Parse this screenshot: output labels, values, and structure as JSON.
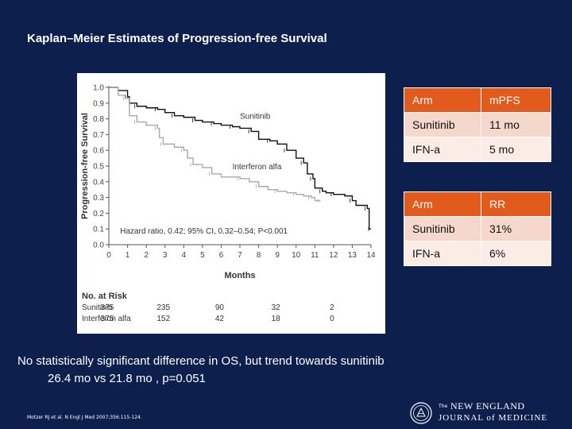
{
  "slide": {
    "title": "Kaplan–Meier Estimates of Progression-free Survival",
    "note_line1": "No statistically significant difference in OS, but trend towards sunitinib",
    "note_line2": "26.4 mo vs 21.8 mo , p=0.051",
    "citation": "Motzer RJ et al. N Engl J Med 2007;356:115-124.",
    "journal_the": "The",
    "journal_line1": "NEW ENGLAND",
    "journal_line2": "JOURNAL of MEDICINE"
  },
  "table_pfs": {
    "header": [
      "Arm",
      "mPFS"
    ],
    "rows": [
      [
        "Sunitinib",
        "11 mo"
      ],
      [
        "IFN-a",
        "5 mo"
      ]
    ]
  },
  "table_rr": {
    "header": [
      "Arm",
      "RR"
    ],
    "rows": [
      [
        "Sunitinib",
        "31%"
      ],
      [
        "IFN-a",
        "6%"
      ]
    ]
  },
  "colors": {
    "background": "#0c1f4d",
    "table_header": "#e35a1d",
    "sunitinib": "#111111",
    "interferon": "#a8a8a8"
  },
  "chart_data": {
    "type": "line",
    "title": "Kaplan–Meier Estimates of Progression-free Survival",
    "xlabel": "Months",
    "ylabel": "Progression-free Survival",
    "xlim": [
      0,
      14
    ],
    "ylim": [
      0,
      1.0
    ],
    "xticks": [
      "0",
      "1",
      "2",
      "3",
      "4",
      "5",
      "6",
      "7",
      "8",
      "9",
      "10",
      "11",
      "12",
      "13",
      "14"
    ],
    "yticks": [
      "0.0",
      "0.1",
      "0.2",
      "0.3",
      "0.4",
      "0.5",
      "0.6",
      "0.7",
      "0.8",
      "0.9",
      "1.0"
    ],
    "annotation": "Hazard ratio, 0.42; 95% CI, 0.32–0.54; P<0.001",
    "series": [
      {
        "name": "Sunitinib",
        "points": [
          [
            0,
            1.0
          ],
          [
            0.5,
            0.98
          ],
          [
            1.0,
            0.94
          ],
          [
            1.1,
            0.9
          ],
          [
            1.5,
            0.88
          ],
          [
            2,
            0.87
          ],
          [
            2.6,
            0.86
          ],
          [
            3,
            0.84
          ],
          [
            3.5,
            0.82
          ],
          [
            4,
            0.81
          ],
          [
            4.6,
            0.79
          ],
          [
            5,
            0.78
          ],
          [
            5.6,
            0.77
          ],
          [
            6,
            0.76
          ],
          [
            6.6,
            0.75
          ],
          [
            7,
            0.74
          ],
          [
            7.6,
            0.72
          ],
          [
            8,
            0.67
          ],
          [
            8.6,
            0.66
          ],
          [
            9,
            0.64
          ],
          [
            9.5,
            0.6
          ],
          [
            10,
            0.55
          ],
          [
            10.4,
            0.52
          ],
          [
            10.6,
            0.45
          ],
          [
            10.9,
            0.42
          ],
          [
            11,
            0.36
          ],
          [
            11.4,
            0.34
          ],
          [
            11.6,
            0.33
          ],
          [
            12,
            0.32
          ],
          [
            12.6,
            0.31
          ],
          [
            13,
            0.28
          ],
          [
            13.2,
            0.25
          ],
          [
            13.8,
            0.23
          ],
          [
            13.9,
            0.1
          ],
          [
            14,
            0.1
          ]
        ]
      },
      {
        "name": "Interferon alfa",
        "points": [
          [
            0,
            1.0
          ],
          [
            0.5,
            0.95
          ],
          [
            0.9,
            0.93
          ],
          [
            1.1,
            0.82
          ],
          [
            1.5,
            0.78
          ],
          [
            2,
            0.76
          ],
          [
            2.6,
            0.74
          ],
          [
            2.7,
            0.68
          ],
          [
            2.9,
            0.64
          ],
          [
            3.5,
            0.62
          ],
          [
            4,
            0.6
          ],
          [
            4.2,
            0.55
          ],
          [
            4.5,
            0.51
          ],
          [
            5,
            0.49
          ],
          [
            5.5,
            0.45
          ],
          [
            6,
            0.43
          ],
          [
            7,
            0.42
          ],
          [
            7.5,
            0.4
          ],
          [
            8,
            0.37
          ],
          [
            8.5,
            0.35
          ],
          [
            9,
            0.34
          ],
          [
            9.5,
            0.33
          ],
          [
            10,
            0.32
          ],
          [
            10.4,
            0.31
          ],
          [
            10.8,
            0.3
          ],
          [
            11,
            0.28
          ],
          [
            11.3,
            0.28
          ]
        ]
      }
    ],
    "series_labels": [
      {
        "text": "Sunitinib",
        "x": 7.0,
        "y": 0.8
      },
      {
        "text": "Interferon alfa",
        "x": 6.6,
        "y": 0.48
      }
    ],
    "risk_table": {
      "title": "No. at Risk",
      "months": [
        0,
        3,
        6,
        9,
        12
      ],
      "rows": [
        {
          "name": "Sunitinib",
          "values": [
            "375",
            "235",
            "90",
            "32",
            "2"
          ]
        },
        {
          "name": "Interferon alfa",
          "values": [
            "375",
            "152",
            "42",
            "18",
            "0"
          ]
        }
      ]
    }
  }
}
